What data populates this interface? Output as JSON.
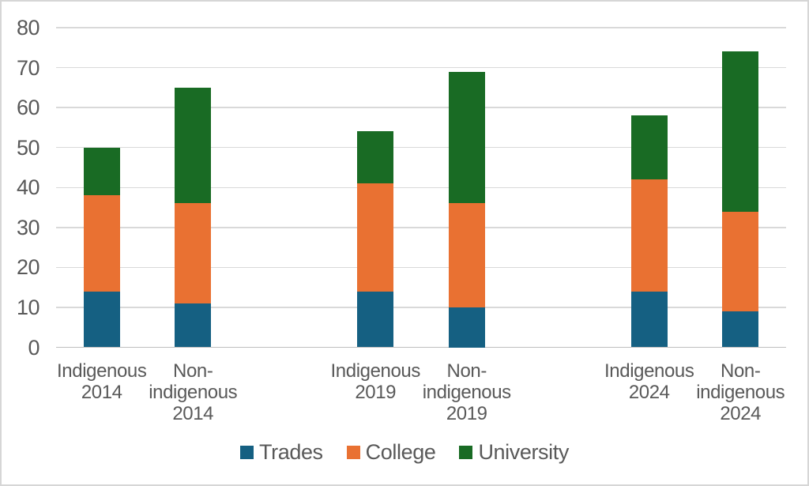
{
  "chart_data": {
    "type": "bar",
    "stacked": true,
    "title": "",
    "xlabel": "",
    "ylabel": "",
    "ylim": [
      0,
      80
    ],
    "ytick_step": 10,
    "ytick_labels": [
      "0",
      "10",
      "20",
      "30",
      "40",
      "50",
      "60",
      "70",
      "80"
    ],
    "grid": true,
    "legend_position": "bottom",
    "categories": [
      {
        "label": "Indigenous 2014",
        "lines": [
          "Indigenous",
          "2014"
        ]
      },
      {
        "label": "Non-indigenous 2014",
        "lines": [
          "Non-",
          "indigenous",
          "2014"
        ]
      },
      {
        "label": "Indigenous 2019",
        "lines": [
          "Indigenous",
          "2019"
        ]
      },
      {
        "label": "Non-indigenous 2019",
        "lines": [
          "Non-",
          "indigenous",
          "2019"
        ]
      },
      {
        "label": "Indigenous 2024",
        "lines": [
          "Indigenous",
          "2024"
        ]
      },
      {
        "label": "Non-indigenous 2024",
        "lines": [
          "Non-",
          "indigenous",
          "2024"
        ]
      }
    ],
    "series": [
      {
        "name": "Trades",
        "color": "#156082",
        "values": [
          14,
          11,
          14,
          10,
          14,
          9
        ]
      },
      {
        "name": "College",
        "color": "#E97132",
        "values": [
          24,
          25,
          27,
          26,
          28,
          25
        ]
      },
      {
        "name": "University",
        "color": "#196B24",
        "values": [
          12,
          29,
          13,
          33,
          16,
          40
        ]
      }
    ],
    "stack_totals": [
      50,
      65,
      54,
      69,
      58,
      74
    ]
  },
  "colors": {
    "background": "#FFFFFF",
    "gridline": "#D9D9D9",
    "axis_line": "#BFBFBF",
    "text": "#595959",
    "frame_border": "#D6D6D6"
  }
}
